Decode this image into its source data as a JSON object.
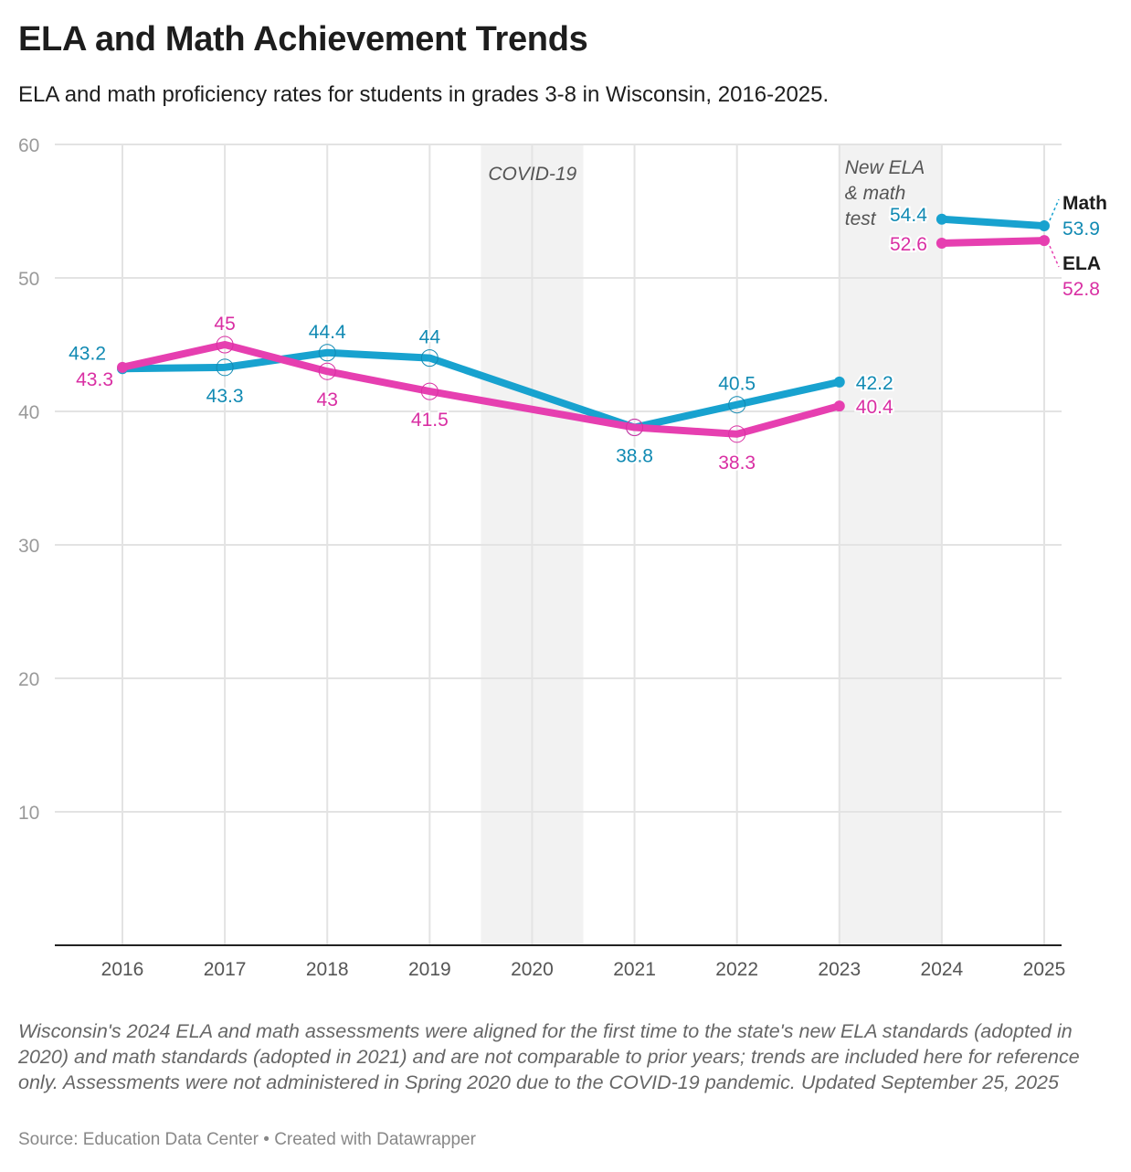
{
  "title": "ELA and Math Achievement Trends",
  "subtitle": "ELA and math proficiency rates for students in grades 3-8 in Wisconsin, 2016-2025.",
  "notes": "Wisconsin's 2024 ELA and math assessments were aligned for the first time to the state's new ELA standards (adopted in 2020) and math standards (adopted in 2021) and are not comparable to prior years; trends are included here for reference only. Assessments were not administered in Spring 2020 due to the COVID-19 pandemic. Updated September 25, 2025",
  "source": "Source: Education Data Center • Created with Datawrapper",
  "chart_data": {
    "type": "line",
    "x": [
      2016,
      2017,
      2018,
      2019,
      2020,
      2021,
      2022,
      2023,
      2024,
      2025
    ],
    "ylim": [
      0,
      60
    ],
    "yticks": [
      10,
      20,
      30,
      40,
      50,
      60
    ],
    "grid": true,
    "annotations": [
      {
        "text_lines": [
          "COVID-19"
        ],
        "x_range": [
          2019.5,
          2020.5
        ]
      },
      {
        "text_lines": [
          "New ELA",
          "& math",
          "test"
        ],
        "x_range": [
          2023,
          2024
        ]
      }
    ],
    "series": [
      {
        "name": "Math",
        "color": "#18a2cf",
        "label_color": "#118ab3",
        "values": [
          43.2,
          43.3,
          44.4,
          44,
          null,
          38.8,
          40.5,
          42.2,
          54.4,
          53.9
        ],
        "labels": [
          "43.2",
          "43.3",
          "44.4",
          "44",
          null,
          "38.8",
          "40.5",
          "42.2",
          "54.4",
          "53.9"
        ],
        "label_pos": [
          "above-left",
          "below",
          "above",
          "above",
          null,
          "below",
          "above",
          "right",
          "left",
          "end"
        ],
        "segments": [
          [
            2016,
            2023
          ],
          [
            2024,
            2025
          ]
        ]
      },
      {
        "name": "ELA",
        "color": "#e63fb0",
        "label_color": "#d92fa3",
        "values": [
          43.3,
          45,
          43,
          41.5,
          null,
          38.8,
          38.3,
          40.4,
          52.6,
          52.8
        ],
        "labels": [
          "43.3",
          "45",
          "43",
          "41.5",
          null,
          null,
          "38.3",
          "40.4",
          "52.6",
          "52.8"
        ],
        "label_pos": [
          "below-left",
          "above",
          "below",
          "below",
          null,
          null,
          "below",
          "right",
          "left",
          "end"
        ],
        "segments": [
          [
            2016,
            2023
          ],
          [
            2024,
            2025
          ]
        ]
      }
    ]
  }
}
